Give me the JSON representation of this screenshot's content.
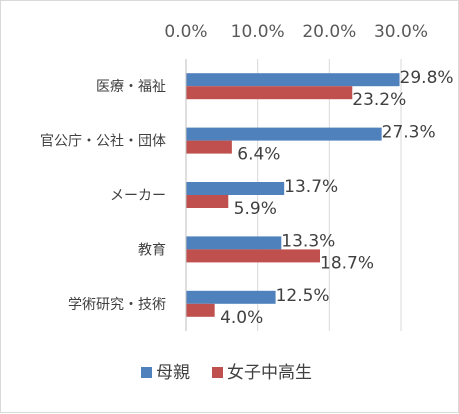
{
  "chart_data": {
    "type": "bar",
    "orientation": "horizontal",
    "title": "",
    "xlabel": "",
    "ylabel": "",
    "xlim": [
      0,
      30
    ],
    "x_ticks": [
      "0.0%",
      "10.0%",
      "20.0%",
      "30.0%"
    ],
    "x_tick_values": [
      0,
      10,
      20,
      30
    ],
    "x_axis_position": "top",
    "grid": "vertical",
    "legend_position": "bottom",
    "categories": [
      "医療・福祉",
      "官公庁・公社・団体",
      "メーカー",
      "教育",
      "学術研究・技術"
    ],
    "series": [
      {
        "name": "母親",
        "color": "#4f81bd",
        "values": [
          29.8,
          27.3,
          13.7,
          13.3,
          12.5
        ],
        "labels": [
          "29.8%",
          "27.3%",
          "13.7%",
          "13.3%",
          "12.5%"
        ]
      },
      {
        "name": "女子中高生",
        "color": "#c0504d",
        "values": [
          23.2,
          6.4,
          5.9,
          18.7,
          4.0
        ],
        "labels": [
          "23.2%",
          "6.4%",
          "5.9%",
          "18.7%",
          "4.0%"
        ]
      }
    ]
  }
}
